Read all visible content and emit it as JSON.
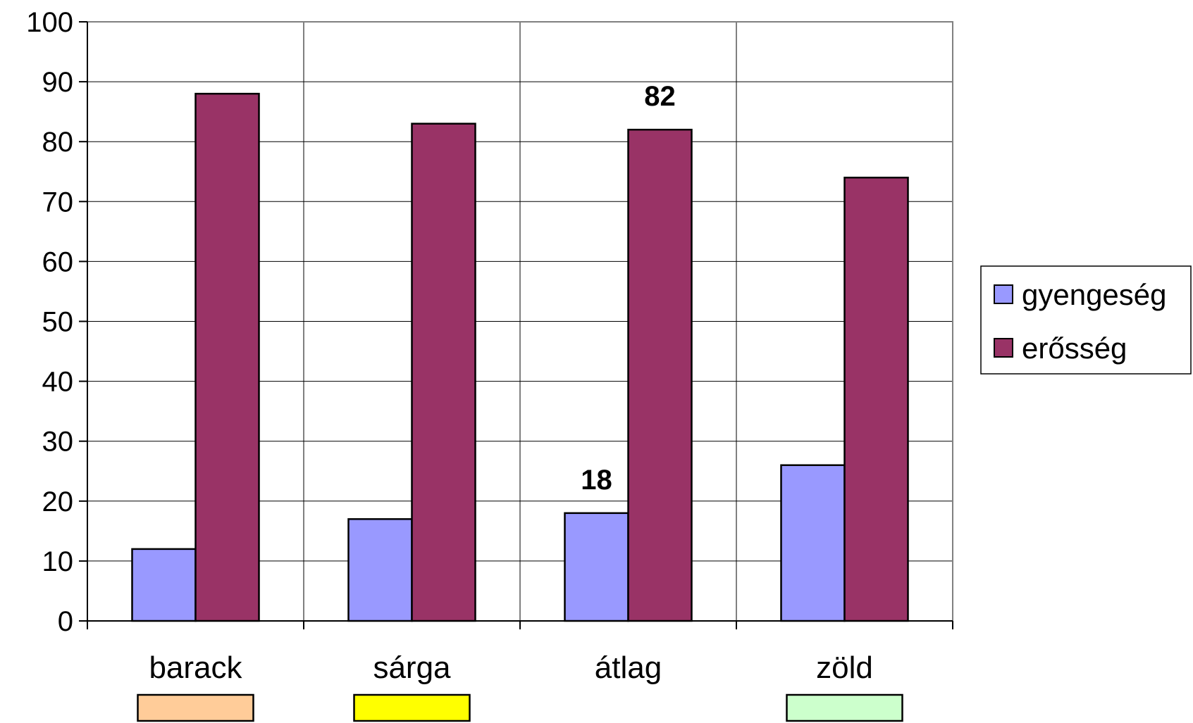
{
  "chart_data": {
    "type": "bar",
    "categories": [
      "barack",
      "sárga",
      "átlag",
      "zöld"
    ],
    "category_swatch_colors": [
      "#ffcc99",
      "#ffff00",
      null,
      "#ccffcc"
    ],
    "series": [
      {
        "name": "gyengeség",
        "color": "#9999ff",
        "values": [
          12,
          17,
          18,
          26
        ]
      },
      {
        "name": "erősség",
        "color": "#993366",
        "values": [
          88,
          83,
          82,
          74
        ]
      }
    ],
    "data_labels": [
      {
        "series": 0,
        "category": 2,
        "text": "18"
      },
      {
        "series": 1,
        "category": 2,
        "text": "82"
      }
    ],
    "ylim": [
      0,
      100
    ],
    "yticks": [
      0,
      10,
      20,
      30,
      40,
      50,
      60,
      70,
      80,
      90,
      100
    ],
    "grid": true,
    "legend_position": "right",
    "title": "",
    "xlabel": "",
    "ylabel": ""
  }
}
